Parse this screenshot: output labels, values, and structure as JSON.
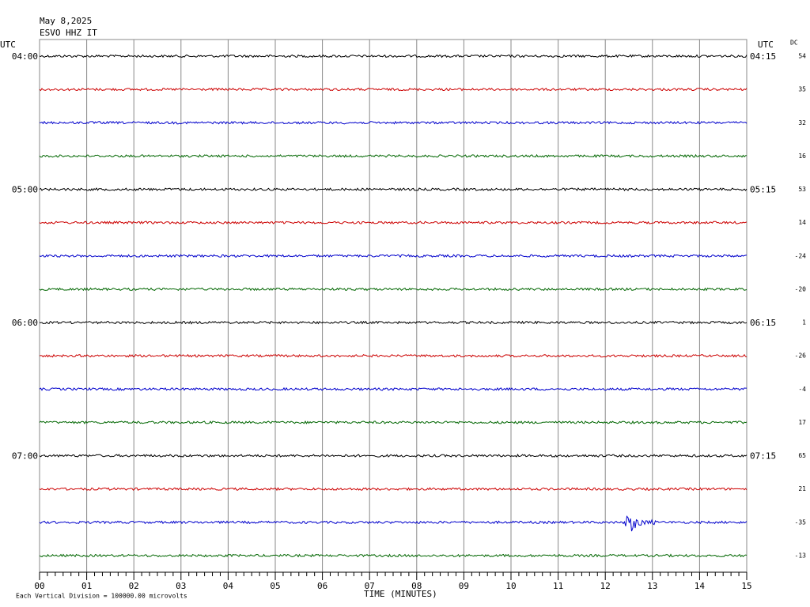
{
  "header": {
    "date": "May 8,2025",
    "station": "ESVO HHZ IT"
  },
  "utc_left": "UTC",
  "utc_right": "UTC",
  "dc_label": "DC",
  "left_times": [
    "04:00",
    "05:00",
    "06:00",
    "07:00"
  ],
  "right_times": [
    "04:15",
    "05:15",
    "06:15",
    "07:15"
  ],
  "dc_values": [
    54,
    35,
    32,
    16,
    53,
    14,
    -24,
    -20,
    1,
    -26,
    -4,
    17,
    65,
    21,
    -35,
    -13
  ],
  "trace_colors": [
    "#000000",
    "#cc0000",
    "#0000cc",
    "#006600"
  ],
  "x_ticks": [
    "00",
    "01",
    "02",
    "03",
    "04",
    "05",
    "06",
    "07",
    "08",
    "09",
    "10",
    "11",
    "12",
    "13",
    "14",
    "15"
  ],
  "x_label": "TIME (MINUTES)",
  "footer": "Each Vertical Division = 100000.00 microvolts"
}
